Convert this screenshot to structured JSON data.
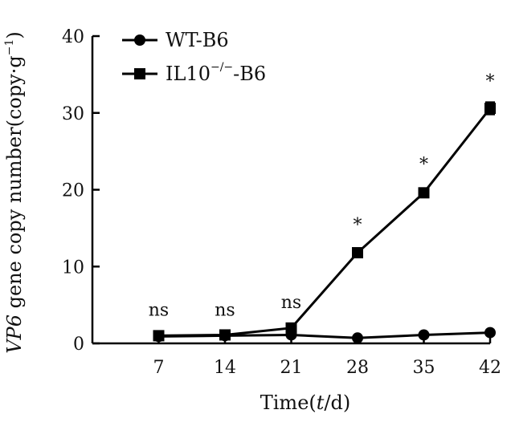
{
  "chart_data": {
    "type": "line",
    "xlabel": {
      "pre": "Time(",
      "italic": "t",
      "post": "/d)"
    },
    "ylabel": {
      "italic": "VP6",
      "rest": " gene copy number(copy·g",
      "sup": "−1",
      "close": ")"
    },
    "x": [
      7,
      14,
      21,
      28,
      35,
      42
    ],
    "x_ticks": [
      "7",
      "14",
      "21",
      "28",
      "35",
      "42"
    ],
    "y_ticks": [
      0,
      10,
      20,
      30,
      40
    ],
    "xlim": [
      0,
      42
    ],
    "ylim": [
      0,
      40
    ],
    "grid": false,
    "legend_position": "top-left",
    "series": [
      {
        "name": "WT-B6",
        "marker": "circle",
        "values": [
          0.9,
          1.0,
          1.1,
          0.7,
          1.1,
          1.4
        ],
        "errors": [
          0.1,
          0.1,
          0.1,
          0.1,
          0.1,
          0.3
        ]
      },
      {
        "name": "IL10",
        "name_sup": "−/−",
        "name_suffix": "-B6",
        "marker": "square",
        "values": [
          1.0,
          1.1,
          2.0,
          11.8,
          19.6,
          30.6
        ],
        "errors": [
          0.1,
          0.1,
          0.1,
          0.3,
          0.3,
          0.8
        ]
      }
    ],
    "annotations": [
      {
        "x": 7,
        "y": 3.6,
        "text": "ns"
      },
      {
        "x": 14,
        "y": 3.6,
        "text": "ns"
      },
      {
        "x": 21,
        "y": 4.6,
        "text": "ns"
      },
      {
        "x": 28,
        "y": 15.5,
        "text": "*"
      },
      {
        "x": 35,
        "y": 23.4,
        "text": "*"
      },
      {
        "x": 42,
        "y": 34.2,
        "text": "*"
      }
    ]
  }
}
